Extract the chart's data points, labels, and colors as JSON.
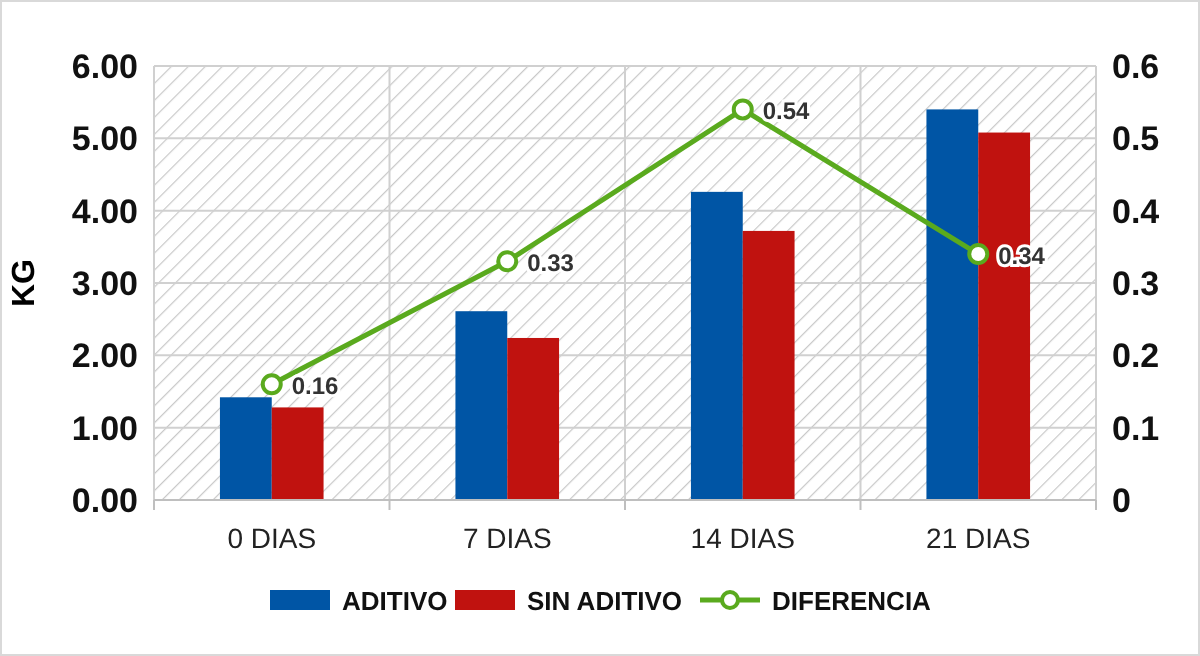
{
  "chart_data": {
    "type": "bar",
    "ylabel": "KG",
    "categories": [
      "0 DIAS",
      "7 DIAS",
      "14 DIAS",
      "21 DIAS"
    ],
    "series": [
      {
        "name": "ADITIVO",
        "color": "#0055a5",
        "values": [
          1.42,
          2.61,
          4.26,
          5.4
        ]
      },
      {
        "name": "SIN ADITIVO",
        "color": "#c0120f",
        "values": [
          1.28,
          2.24,
          3.72,
          5.08
        ]
      },
      {
        "name": "DIFERENCIA",
        "type": "line",
        "axis": "y2",
        "color": "#5aaa1e",
        "marker": "circle",
        "values": [
          0.16,
          0.33,
          0.54,
          0.34
        ],
        "value_labels": [
          "0.16",
          "0.33",
          "0.54",
          "0.34"
        ]
      }
    ],
    "ylim": [
      0,
      6
    ],
    "yticks": [
      {
        "value": 0,
        "label": "0.00"
      },
      {
        "value": 1,
        "label": "1.00"
      },
      {
        "value": 2,
        "label": "2.00"
      },
      {
        "value": 3,
        "label": "3.00"
      },
      {
        "value": 4,
        "label": "4.00"
      },
      {
        "value": 5,
        "label": "5.00"
      },
      {
        "value": 6,
        "label": "6.00"
      }
    ],
    "y2lim": [
      0,
      0.6
    ],
    "y2ticks": [
      0,
      0.1,
      0.2,
      0.3,
      0.4,
      0.5,
      0.6
    ],
    "grid": true,
    "legend": "bottom"
  }
}
